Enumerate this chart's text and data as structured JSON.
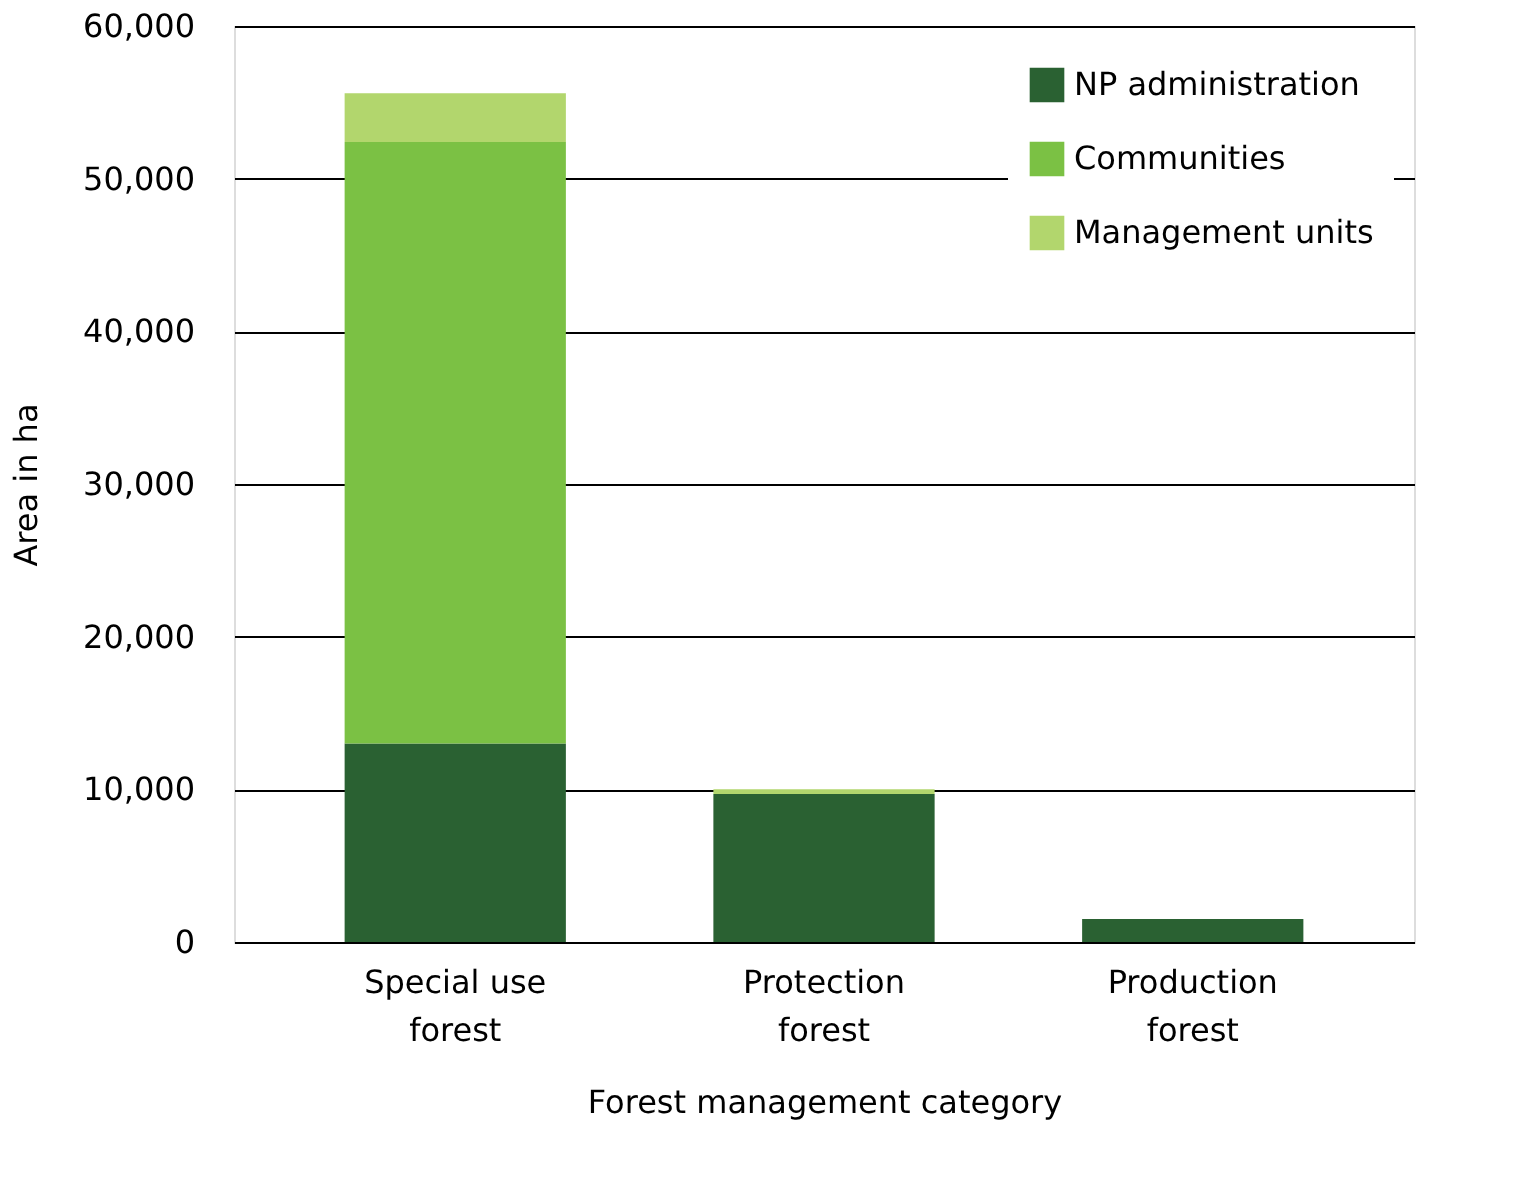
{
  "chart_data": {
    "type": "bar",
    "stacked": true,
    "xlabel": "Forest management category",
    "ylabel": "Area in ha",
    "categories": [
      "Special use forest",
      "Protection forest",
      "Production forest"
    ],
    "series": [
      {
        "name": "NP administration",
        "color": "#2a6132",
        "values": [
          13000,
          9700,
          1500
        ]
      },
      {
        "name": "Communities",
        "color": "#7bc144",
        "values": [
          39400,
          0,
          0
        ]
      },
      {
        "name": "Management units",
        "color": "#b2d66d",
        "values": [
          3200,
          300,
          0
        ]
      }
    ],
    "ylim": [
      0,
      60000
    ],
    "yticks": [
      {
        "value": 0,
        "label": "0"
      },
      {
        "value": 10000,
        "label": "10,000"
      },
      {
        "value": 20000,
        "label": "20,000"
      },
      {
        "value": 30000,
        "label": "30,000"
      },
      {
        "value": 40000,
        "label": "40,000"
      },
      {
        "value": 50000,
        "label": "50,000"
      },
      {
        "value": 60000,
        "label": "60,000"
      }
    ],
    "grid": "y",
    "legend": "top right"
  }
}
